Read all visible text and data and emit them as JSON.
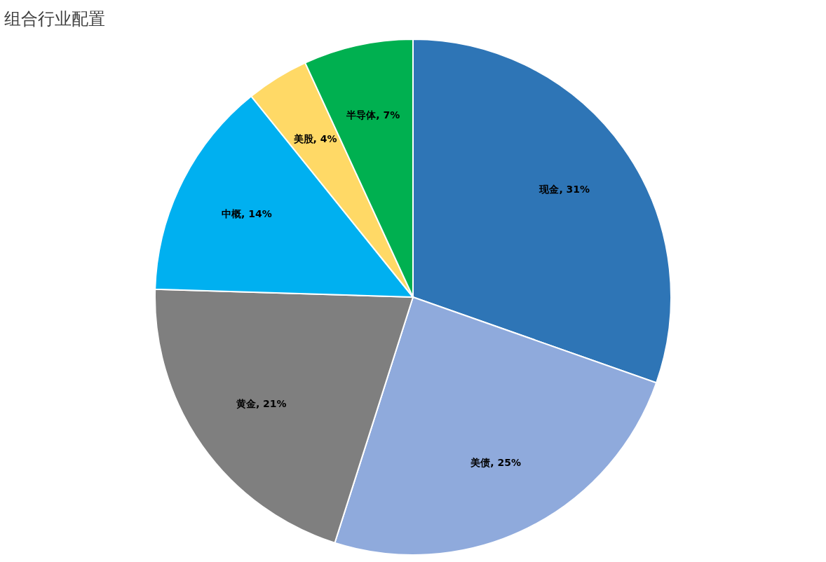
{
  "chart_data": {
    "type": "pie",
    "title": "组合行业配置",
    "categories": [
      "现金",
      "美债",
      "黄金",
      "中概",
      "美股",
      "半导体"
    ],
    "values": [
      31,
      25,
      21,
      14,
      4,
      7
    ],
    "colors": [
      "#2e75b6",
      "#8faadc",
      "#7f7f7f",
      "#00b0f0",
      "#ffd966",
      "#00b050"
    ],
    "value_labels": [
      "31%",
      "25%",
      "21%",
      "14%",
      "4%",
      "7%"
    ],
    "legend": false
  }
}
